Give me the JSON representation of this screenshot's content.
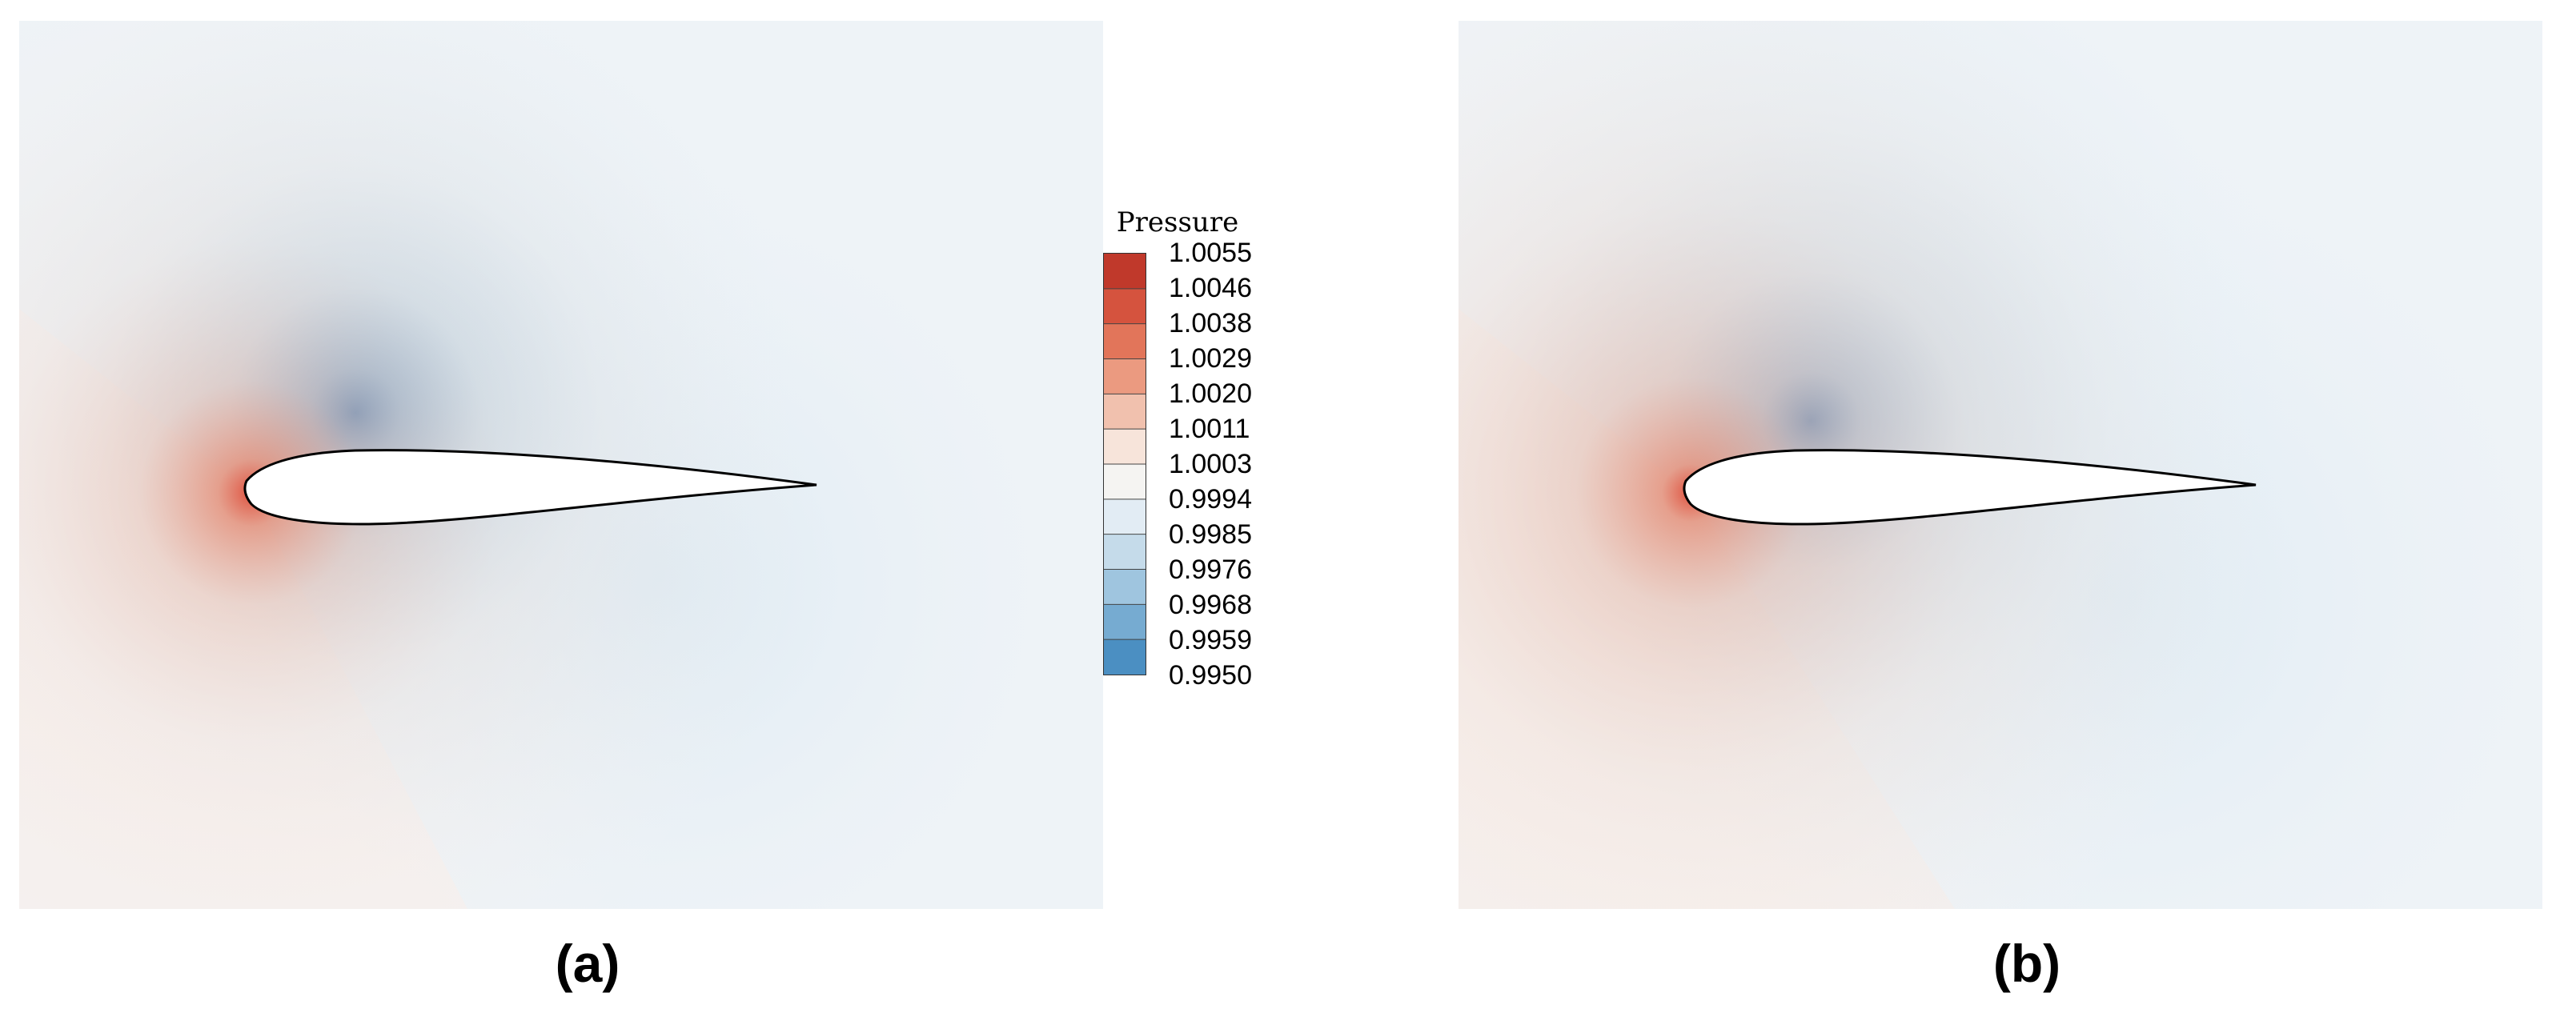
{
  "panels": [
    {
      "id": "a",
      "caption": "(a)"
    },
    {
      "id": "b",
      "caption": "(b)"
    }
  ],
  "legend": {
    "title": "Pressure",
    "levels": [
      "1.0055",
      "1.0046",
      "1.0038",
      "1.0029",
      "1.0020",
      "1.0011",
      "1.0003",
      "0.9994",
      "0.9985",
      "0.9976",
      "0.9968",
      "0.9959",
      "0.9950"
    ],
    "colors": [
      "#c0392b",
      "#d5533e",
      "#e2755a",
      "#eb9a80",
      "#f1c1ae",
      "#f7e4da",
      "#f5f4f2",
      "#e2ecf4",
      "#c5dbea",
      "#9fc5df",
      "#76abd1",
      "#4b8fc2",
      "#2b73b3"
    ]
  },
  "colors": {
    "background": "#eef3f7",
    "stagnation": "#e35b45",
    "suction": "#2f78b8",
    "airfoil_fill": "#ffffff",
    "airfoil_outline": "#000000"
  }
}
